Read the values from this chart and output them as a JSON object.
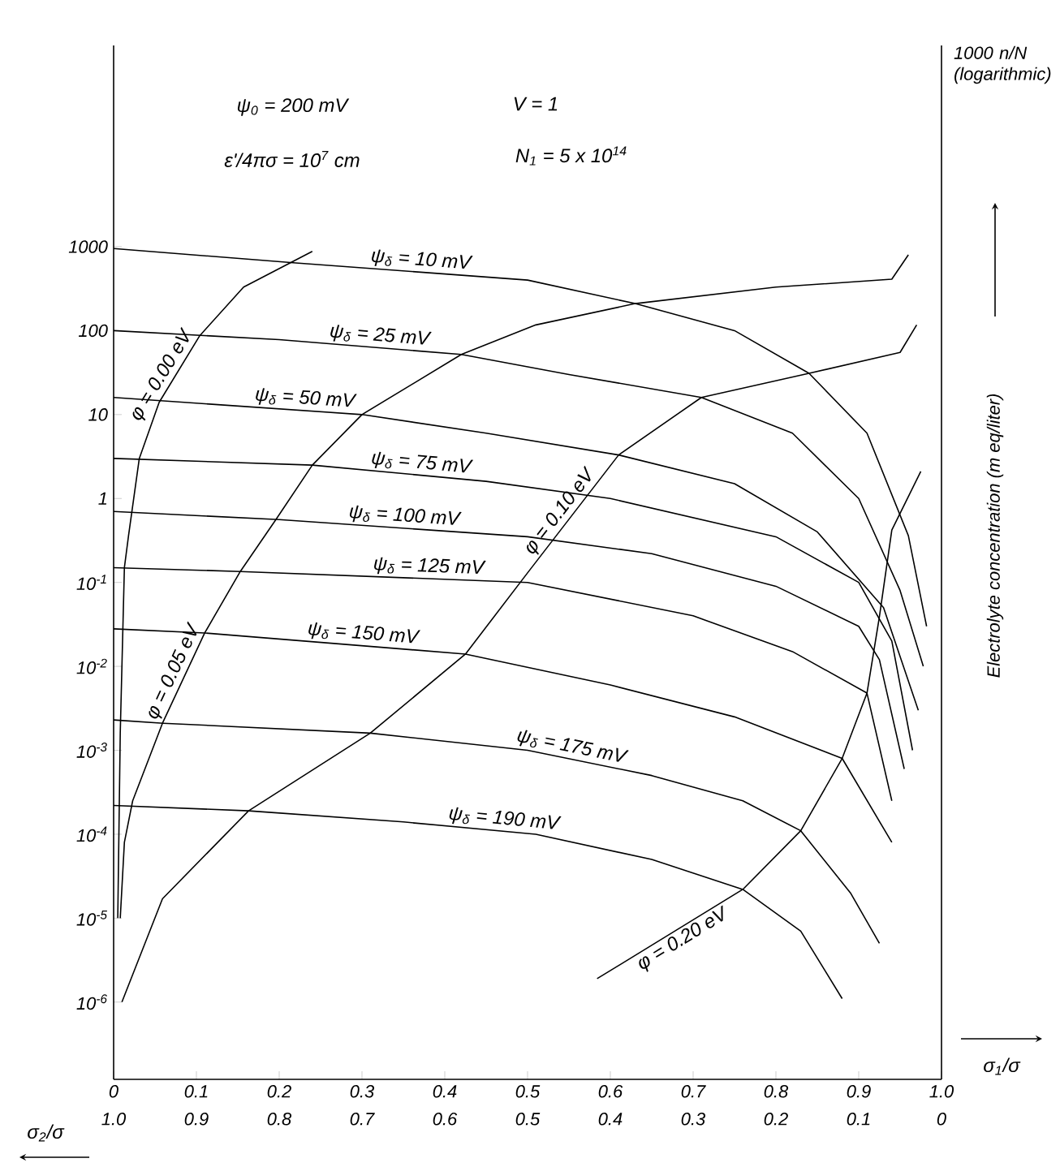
{
  "chart_data": {
    "type": "line",
    "log": "y",
    "xlabel": "σ$_{1}$/σ",
    "x2label": "σ$_{2}$/σ",
    "ylabel": "Electrolyte concentration (m eq/liter)",
    "xlim": [
      0,
      1
    ],
    "xticks": [
      0,
      0.1,
      0.2,
      0.3,
      0.4,
      0.5,
      0.6,
      0.7,
      0.8,
      0.9,
      {
        "value": 1,
        "label": "1.0"
      }
    ],
    "x2lim": [
      1,
      0
    ],
    "x2ticks": [
      {
        "value": 1,
        "label": "1.0"
      },
      0.9,
      0.8,
      0.7,
      0.6,
      0.5,
      0.4,
      0.3,
      0.2,
      0.1,
      0
    ],
    "ylim": [
      1.2e-07,
      250000
    ],
    "yticks": [
      1000,
      100,
      10,
      1,
      {
        "value": 0.1,
        "label": "10$^{-1}$"
      },
      {
        "value": 0.01,
        "label": "10$^{-2}$"
      },
      {
        "value": 0.001,
        "label": "10$^{-3}$"
      },
      {
        "value": 0.0001,
        "label": "10$^{-4}$"
      },
      {
        "value": 1e-05,
        "label": "10$^{-5}$"
      },
      {
        "value": 1e-06,
        "label": "10$^{-6}$"
      }
    ],
    "annotations": [
      "ψ$_{0}$ = 200 mV",
      "ε'/4πσ = 10$^{7}$ cm",
      "V = 1",
      "N$_{1}$ = 5 x 10$^{14}$",
      "1000 n/N (logarithmic)"
    ],
    "series": [
      {
        "name": "ψ$_{δ}$ = 10 mV",
        "color": "#000000",
        "x": [
          0,
          0.22,
          0.5,
          0.63,
          0.75,
          0.84,
          0.91,
          0.96,
          0.982
        ],
        "values": [
          950,
          640,
          400,
          210,
          100,
          31,
          6,
          0.36,
          0.03
        ]
      },
      {
        "name": "ψ$_{δ}$ = 25 mV",
        "color": "#000000",
        "x": [
          0,
          0.2,
          0.42,
          0.55,
          0.71,
          0.82,
          0.9,
          0.95,
          0.978
        ],
        "values": [
          100,
          78,
          52,
          30,
          16,
          6,
          1,
          0.08,
          0.01
        ]
      },
      {
        "name": "ψ$_{δ}$ = 50 mV",
        "color": "#000000",
        "x": [
          0,
          0.3,
          0.45,
          0.61,
          0.75,
          0.85,
          0.93,
          0.972
        ],
        "values": [
          16,
          10,
          6,
          3.3,
          1.5,
          0.4,
          0.05,
          0.003
        ]
      },
      {
        "name": "ψ$_{δ}$ = 75 mV",
        "color": "#000000",
        "x": [
          0,
          0.24,
          0.45,
          0.6,
          0.8,
          0.9,
          0.94,
          0.965
        ],
        "values": [
          3,
          2.5,
          1.6,
          1,
          0.35,
          0.1,
          0.02,
          0.001
        ]
      },
      {
        "name": "ψ$_{δ}$ = 100 mV",
        "color": "#000000",
        "x": [
          0,
          0.2,
          0.5,
          0.65,
          0.8,
          0.9,
          0.925,
          0.955
        ],
        "values": [
          0.7,
          0.56,
          0.35,
          0.22,
          0.09,
          0.03,
          0.012,
          0.0006
        ]
      },
      {
        "name": "ψ$_{δ}$ = 125 mV",
        "color": "#000000",
        "x": [
          0,
          0.153,
          0.5,
          0.7,
          0.82,
          0.91,
          0.94
        ],
        "values": [
          0.15,
          0.135,
          0.1,
          0.04,
          0.015,
          0.0048,
          0.00025
        ]
      },
      {
        "name": "ψ$_{δ}$ = 150 mV",
        "color": "#000000",
        "x": [
          0,
          0.11,
          0.425,
          0.6,
          0.75,
          0.88,
          0.94
        ],
        "values": [
          0.028,
          0.025,
          0.014,
          0.006,
          0.0025,
          0.0008,
          8e-05
        ]
      },
      {
        "name": "ψ$_{δ}$ = 175 mV",
        "color": "#000000",
        "x": [
          0,
          0.06,
          0.31,
          0.5,
          0.65,
          0.76,
          0.83,
          0.89,
          0.925
        ],
        "values": [
          0.0023,
          0.0021,
          0.0016,
          0.001,
          0.0005,
          0.00025,
          0.00011,
          2e-05,
          5e-06
        ]
      },
      {
        "name": "ψ$_{δ}$ = 190 mV",
        "color": "#000000",
        "x": [
          0,
          0.163,
          0.35,
          0.51,
          0.65,
          0.76,
          0.83,
          0.88
        ],
        "values": [
          0.00022,
          0.00019,
          0.00014,
          0.0001,
          5e-05,
          2.2e-05,
          7e-06,
          1.1e-06
        ]
      },
      {
        "name": "φ = 0.00 eV",
        "color": "#000000",
        "x": [
          0.005,
          0.008,
          0.013,
          0.018,
          0.031,
          0.055,
          0.104,
          0.157,
          0.24
        ],
        "values": [
          1e-05,
          0.0016,
          0.15,
          0.36,
          3,
          14,
          87,
          330,
          880
        ]
      },
      {
        "name": "φ = 0.05 eV",
        "color": "#000000",
        "x": [
          0.008,
          0.013,
          0.023,
          0.059,
          0.11,
          0.153,
          0.196,
          0.24,
          0.3,
          0.42,
          0.51,
          0.63,
          0.8,
          0.94,
          0.96
        ],
        "values": [
          1e-05,
          8e-05,
          0.00025,
          0.0021,
          0.025,
          0.135,
          0.56,
          2.5,
          10,
          52,
          117,
          210,
          330,
          410,
          800
        ]
      },
      {
        "name": "φ = 0.10 eV",
        "color": "#000000",
        "x": [
          0.01,
          0.059,
          0.163,
          0.31,
          0.425,
          0.5,
          0.61,
          0.71,
          0.84,
          0.95,
          0.97
        ],
        "values": [
          1e-06,
          1.7e-05,
          0.00019,
          0.0016,
          0.014,
          0.13,
          3.3,
          16,
          31,
          55,
          117
        ]
      },
      {
        "name": "φ = 0.20 eV",
        "color": "#000000",
        "x": [
          0.584,
          0.76,
          0.83,
          0.88,
          0.91,
          0.925,
          0.94,
          0.975
        ],
        "values": [
          1.9e-06,
          2.2e-05,
          0.00011,
          0.0008,
          0.0048,
          0.039,
          0.42,
          2.1
        ]
      }
    ]
  }
}
